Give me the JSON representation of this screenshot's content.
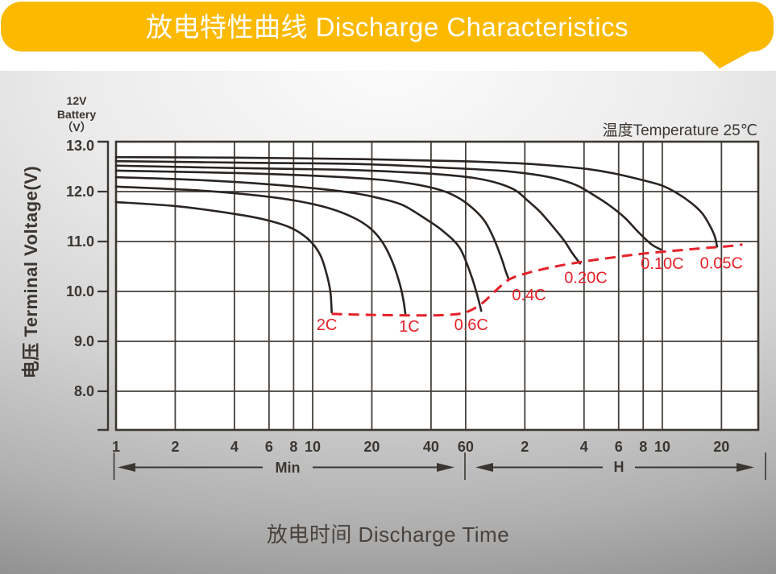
{
  "banner": {
    "title": "放电特性曲线 Discharge Characteristics",
    "background_color": "#FBB900",
    "text_color": "#FFFFFF"
  },
  "battery_label": {
    "line1": "12V",
    "line2": "Battery",
    "line3": "（V）"
  },
  "temperature_label": "温度Temperature 25℃",
  "y_axis": {
    "label": "电压 Terminal Voltage(V)",
    "ticks": [
      "13.0",
      "12.0",
      "11.0",
      "10.0",
      "9.0",
      "8.0"
    ],
    "tick_values": [
      13,
      12,
      11,
      10,
      9,
      8
    ]
  },
  "x_axis": {
    "label": "放电时间 Discharge Time",
    "minute_section_label": "Min",
    "hour_section_label": "H",
    "ticks": [
      {
        "label": "1",
        "t": 1
      },
      {
        "label": "2",
        "t": 2
      },
      {
        "label": "4",
        "t": 4
      },
      {
        "label": "6",
        "t": 6
      },
      {
        "label": "8",
        "t": 8
      },
      {
        "label": "10",
        "t": 10
      },
      {
        "label": "20",
        "t": 20
      },
      {
        "label": "40",
        "t": 40
      },
      {
        "label": "60",
        "t": 60
      },
      {
        "label": "2",
        "t": 120
      },
      {
        "label": "4",
        "t": 240
      },
      {
        "label": "6",
        "t": 360
      },
      {
        "label": "8",
        "t": 480
      },
      {
        "label": "10",
        "t": 600
      },
      {
        "label": "20",
        "t": 1200
      }
    ]
  },
  "colors": {
    "grid": "#45403B",
    "border": "#3D3732",
    "curve": "#2A2522",
    "cutoff_red": "#E62129",
    "tick_text": "#3B3631"
  },
  "chart_data": {
    "type": "line",
    "title": "放电特性曲线 Discharge Characteristics",
    "xlabel": "放电时间 Discharge Time",
    "ylabel": "电压 Terminal Voltage(V)",
    "x_scale": "log",
    "x_range_minutes": [
      1,
      1800
    ],
    "ylim": [
      7.2,
      13.0
    ],
    "y_gridlines": [
      12,
      11,
      10,
      9,
      8
    ],
    "grid": true,
    "annotation": "温度Temperature 25℃",
    "series": [
      {
        "name": "2C",
        "label_pos": {
          "t": 11.8,
          "v": 9.32
        },
        "points": [
          [
            1,
            11.79
          ],
          [
            2,
            11.71
          ],
          [
            3.9,
            11.56
          ],
          [
            5.7,
            11.44
          ],
          [
            7.8,
            11.27
          ],
          [
            9.6,
            11.03
          ],
          [
            10.9,
            10.74
          ],
          [
            11.7,
            10.39
          ],
          [
            12.3,
            10.0
          ],
          [
            12.5,
            9.58
          ]
        ]
      },
      {
        "name": "1C",
        "label_pos": {
          "t": 31,
          "v": 9.29
        },
        "points": [
          [
            1,
            12.1
          ],
          [
            2.7,
            12.02
          ],
          [
            5.3,
            11.92
          ],
          [
            8.4,
            11.81
          ],
          [
            12.3,
            11.66
          ],
          [
            16.3,
            11.47
          ],
          [
            19.7,
            11.26
          ],
          [
            22.7,
            10.98
          ],
          [
            25.4,
            10.6
          ],
          [
            27.7,
            10.16
          ],
          [
            28.9,
            9.84
          ],
          [
            29.6,
            9.56
          ]
        ]
      },
      {
        "name": "0.6C",
        "label_pos": {
          "t": 64,
          "v": 9.32
        },
        "points": [
          [
            1,
            12.29
          ],
          [
            2.7,
            12.23
          ],
          [
            5.8,
            12.15
          ],
          [
            11.2,
            12.05
          ],
          [
            16.3,
            11.97
          ],
          [
            21.7,
            11.87
          ],
          [
            28.7,
            11.73
          ],
          [
            38,
            11.44
          ],
          [
            46,
            11.21
          ],
          [
            56,
            10.87
          ],
          [
            64,
            10.32
          ],
          [
            69,
            9.9
          ],
          [
            72,
            9.61
          ]
        ]
      },
      {
        "name": "0.4C",
        "label_pos": {
          "t": 126,
          "v": 9.92
        },
        "points": [
          [
            1,
            12.42
          ],
          [
            4.3,
            12.37
          ],
          [
            11.2,
            12.31
          ],
          [
            21.7,
            12.24
          ],
          [
            31.6,
            12.16
          ],
          [
            42,
            12.06
          ],
          [
            50.6,
            11.95
          ],
          [
            61,
            11.76
          ],
          [
            74,
            11.44
          ],
          [
            83,
            11.08
          ],
          [
            91,
            10.68
          ],
          [
            96,
            10.4
          ],
          [
            99,
            10.26
          ]
        ]
      },
      {
        "name": "0.20C",
        "label_pos": {
          "t": 245,
          "v": 10.27
        },
        "points": [
          [
            1,
            12.52
          ],
          [
            4.3,
            12.47
          ],
          [
            13.5,
            12.44
          ],
          [
            28.7,
            12.39
          ],
          [
            46,
            12.34
          ],
          [
            67,
            12.27
          ],
          [
            89,
            12.16
          ],
          [
            108,
            12.02
          ],
          [
            124,
            11.82
          ],
          [
            143,
            11.6
          ],
          [
            165,
            11.32
          ],
          [
            190,
            11.02
          ],
          [
            209,
            10.77
          ],
          [
            225,
            10.6
          ],
          [
            229,
            10.56
          ]
        ]
      },
      {
        "name": "0.10C",
        "label_pos": {
          "t": 600,
          "v": 10.55
        },
        "points": [
          [
            1,
            12.61
          ],
          [
            4.3,
            12.58
          ],
          [
            18,
            12.55
          ],
          [
            46,
            12.48
          ],
          [
            89,
            12.42
          ],
          [
            130,
            12.35
          ],
          [
            173,
            12.26
          ],
          [
            219,
            12.13
          ],
          [
            264,
            11.95
          ],
          [
            319,
            11.74
          ],
          [
            386,
            11.48
          ],
          [
            453,
            11.19
          ],
          [
            526,
            10.95
          ],
          [
            589,
            10.84
          ]
        ]
      },
      {
        "name": "0.05C",
        "label_pos": {
          "t": 1200,
          "v": 10.56
        },
        "points": [
          [
            1,
            12.69
          ],
          [
            4,
            12.68
          ],
          [
            18,
            12.65
          ],
          [
            56,
            12.61
          ],
          [
            120,
            12.56
          ],
          [
            190,
            12.5
          ],
          [
            252,
            12.45
          ],
          [
            335,
            12.37
          ],
          [
            444,
            12.26
          ],
          [
            590,
            12.13
          ],
          [
            712,
            11.97
          ],
          [
            844,
            11.77
          ],
          [
            960,
            11.56
          ],
          [
            1050,
            11.31
          ],
          [
            1110,
            11.1
          ],
          [
            1140,
            10.9
          ]
        ]
      }
    ],
    "cutoff_curve": {
      "name": "cutoff-voltage",
      "style": "dashed",
      "color": "#E62129",
      "points": [
        [
          12.5,
          9.55
        ],
        [
          19.7,
          9.53
        ],
        [
          34.8,
          9.52
        ],
        [
          48,
          9.53
        ],
        [
          60,
          9.58
        ],
        [
          72.6,
          9.76
        ],
        [
          85.5,
          10.02
        ],
        [
          100,
          10.24
        ],
        [
          124,
          10.37
        ],
        [
          172,
          10.5
        ],
        [
          240,
          10.6
        ],
        [
          350,
          10.69
        ],
        [
          488,
          10.76
        ],
        [
          712,
          10.82
        ],
        [
          989,
          10.87
        ],
        [
          1250,
          10.9
        ],
        [
          1536,
          10.94
        ]
      ]
    }
  }
}
